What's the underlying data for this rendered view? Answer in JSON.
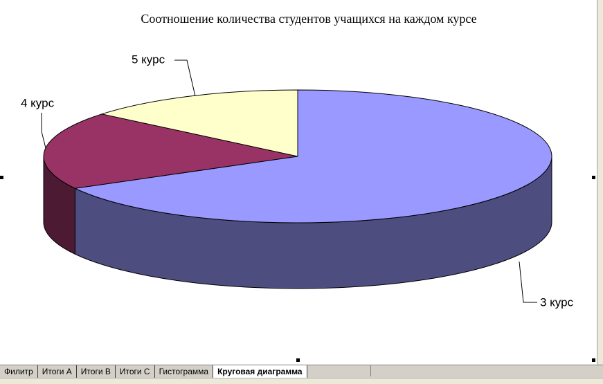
{
  "chart_data": {
    "type": "pie",
    "title": "Соотношение количества студентов учащихся на каждом курсе",
    "categories": [
      "3 курс",
      "4 курс",
      "5 курс"
    ],
    "values": [
      67,
      19,
      14
    ],
    "colors": [
      "#9999ff",
      "#993366",
      "#ffffcc"
    ],
    "three_d": true
  },
  "sheet_tabs": [
    "Филитр",
    "Итоги А",
    "Итоги В",
    "Итоги С",
    "Гистограмма",
    "Круговая диаграмма"
  ]
}
